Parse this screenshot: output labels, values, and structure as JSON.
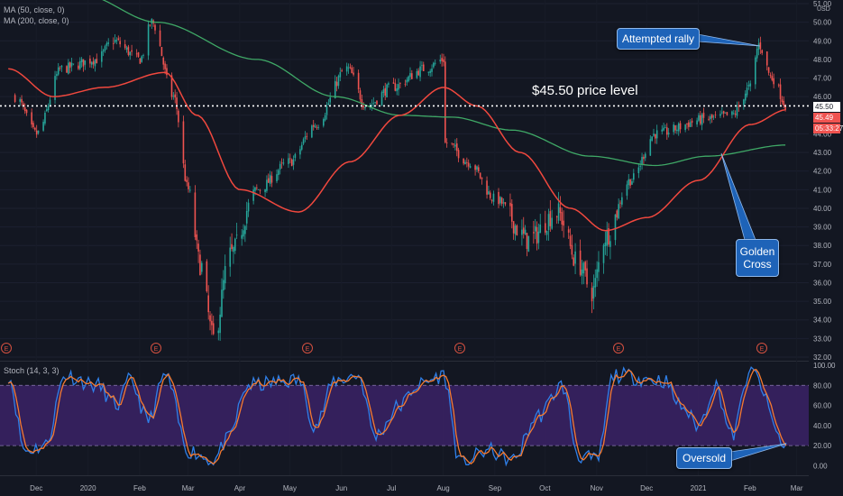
{
  "legend": {
    "ma50": "MA (50, close, 0)",
    "ma200": "MA (200, close, 0)",
    "stoch": "Stoch (14, 3, 3)"
  },
  "annotations": {
    "price_level": "$45.50 price level",
    "attempted_rally": "Attempted rally",
    "golden_cross": "Golden Cross",
    "oversold": "Oversold"
  },
  "price_badges": {
    "level": "45.50",
    "last": "45.49",
    "countdown": "05:33:27"
  },
  "earnings_marker": "E",
  "colors": {
    "background": "#131722",
    "up": "#26a69a",
    "down": "#ef5350",
    "ma50": "#f0483e",
    "ma200": "#3fa866",
    "stoch_k": "#2f7fe8",
    "stoch_d": "#f57a30",
    "stoch_band": "#3b2266",
    "callout": "#1e63b8"
  },
  "chart_data": {
    "type": "candlestick",
    "currency": "USD",
    "price_axis": {
      "ylim": [
        32,
        51
      ],
      "ticks": [
        "32.00",
        "33.00",
        "34.00",
        "35.00",
        "36.00",
        "37.00",
        "38.00",
        "39.00",
        "40.00",
        "41.00",
        "42.00",
        "43.00",
        "44.00",
        "45.00",
        "46.00",
        "47.00",
        "48.00",
        "49.00",
        "50.00",
        "51.00"
      ]
    },
    "x_ticks": [
      "Dec",
      "2020",
      "Feb",
      "Mar",
      "Apr",
      "May",
      "Jun",
      "Jul",
      "Aug",
      "Sep",
      "Oct",
      "Nov",
      "Dec",
      "2021",
      "Feb",
      "Mar"
    ],
    "reference_line": 45.5,
    "close_path": [
      [
        "2019-11-22",
        46.0
      ],
      [
        "2019-12-05",
        44.0
      ],
      [
        "2019-12-20",
        47.5
      ],
      [
        "2020-01-10",
        48.0
      ],
      [
        "2020-01-20",
        49.0
      ],
      [
        "2020-02-05",
        48.0
      ],
      [
        "2020-02-12",
        50.0
      ],
      [
        "2020-02-25",
        46.0
      ],
      [
        "2020-03-05",
        41.0
      ],
      [
        "2020-03-12",
        37.0
      ],
      [
        "2020-03-20",
        33.0
      ],
      [
        "2020-03-30",
        37.5
      ],
      [
        "2020-04-15",
        41.0
      ],
      [
        "2020-05-05",
        42.5
      ],
      [
        "2020-05-20",
        44.5
      ],
      [
        "2020-06-08",
        47.5
      ],
      [
        "2020-06-20",
        45.5
      ],
      [
        "2020-07-05",
        46.5
      ],
      [
        "2020-07-25",
        47.5
      ],
      [
        "2020-08-05",
        48.0
      ],
      [
        "2020-08-07",
        43.5
      ],
      [
        "2020-08-20",
        42.5
      ],
      [
        "2020-09-05",
        40.5
      ],
      [
        "2020-09-25",
        38.3
      ],
      [
        "2020-10-12",
        39.8
      ],
      [
        "2020-10-25",
        37.0
      ],
      [
        "2020-11-02",
        35.5
      ],
      [
        "2020-11-10",
        38.5
      ],
      [
        "2020-11-25",
        41.5
      ],
      [
        "2020-12-10",
        44.0
      ],
      [
        "2021-01-10",
        44.8
      ],
      [
        "2021-01-25",
        45.0
      ],
      [
        "2021-02-05",
        46.5
      ],
      [
        "2021-02-10",
        48.8
      ],
      [
        "2021-02-18",
        47.0
      ],
      [
        "2021-02-27",
        45.49
      ]
    ],
    "ma50": [
      [
        "2019-11-18",
        47.5
      ],
      [
        "2019-12-15",
        46.0
      ],
      [
        "2020-01-15",
        46.5
      ],
      [
        "2020-02-20",
        47.3
      ],
      [
        "2020-03-10",
        45.0
      ],
      [
        "2020-04-05",
        41.0
      ],
      [
        "2020-05-10",
        39.8
      ],
      [
        "2020-06-10",
        42.5
      ],
      [
        "2020-07-10",
        45.0
      ],
      [
        "2020-08-05",
        46.5
      ],
      [
        "2020-08-25",
        45.5
      ],
      [
        "2020-09-20",
        43.0
      ],
      [
        "2020-10-20",
        40.0
      ],
      [
        "2020-11-10",
        38.8
      ],
      [
        "2020-12-05",
        39.5
      ],
      [
        "2021-01-05",
        41.5
      ],
      [
        "2021-02-05",
        44.5
      ],
      [
        "2021-02-27",
        45.3
      ]
    ],
    "ma200": [
      [
        "2020-01-01",
        51.5
      ],
      [
        "2020-02-15",
        50.0
      ],
      [
        "2020-04-15",
        48.0
      ],
      [
        "2020-06-01",
        46.0
      ],
      [
        "2020-07-10",
        45.0
      ],
      [
        "2020-08-10",
        44.9
      ],
      [
        "2020-09-15",
        44.2
      ],
      [
        "2020-11-01",
        42.8
      ],
      [
        "2020-12-10",
        42.3
      ],
      [
        "2021-01-10",
        42.8
      ],
      [
        "2021-02-27",
        43.4
      ]
    ],
    "stochastic": {
      "ylim": [
        -5,
        100
      ],
      "ticks": [
        "0.00",
        "20.00",
        "40.00",
        "60.00",
        "80.00",
        "100.00"
      ],
      "band": [
        20,
        80
      ],
      "k_path": [
        [
          "2019-11-18",
          90
        ],
        [
          "2019-11-28",
          15
        ],
        [
          "2019-12-10",
          20
        ],
        [
          "2019-12-22",
          90
        ],
        [
          "2020-01-10",
          80
        ],
        [
          "2020-01-22",
          60
        ],
        [
          "2020-01-30",
          85
        ],
        [
          "2020-02-10",
          45
        ],
        [
          "2020-02-20",
          90
        ],
        [
          "2020-03-05",
          15
        ],
        [
          "2020-03-20",
          5
        ],
        [
          "2020-03-28",
          25
        ],
        [
          "2020-04-10",
          80
        ],
        [
          "2020-05-10",
          85
        ],
        [
          "2020-05-20",
          40
        ],
        [
          "2020-06-01",
          85
        ],
        [
          "2020-06-15",
          90
        ],
        [
          "2020-06-25",
          30
        ],
        [
          "2020-07-10",
          60
        ],
        [
          "2020-07-20",
          80
        ],
        [
          "2020-08-05",
          90
        ],
        [
          "2020-08-15",
          2
        ],
        [
          "2020-09-01",
          15
        ],
        [
          "2020-09-15",
          5
        ],
        [
          "2020-10-01",
          50
        ],
        [
          "2020-10-15",
          80
        ],
        [
          "2020-10-25",
          10
        ],
        [
          "2020-11-05",
          5
        ],
        [
          "2020-11-15",
          90
        ],
        [
          "2020-12-15",
          85
        ],
        [
          "2020-12-25",
          60
        ],
        [
          "2021-01-05",
          40
        ],
        [
          "2021-01-15",
          80
        ],
        [
          "2021-01-25",
          30
        ],
        [
          "2021-02-05",
          95
        ],
        [
          "2021-02-27",
          18
        ]
      ]
    }
  }
}
